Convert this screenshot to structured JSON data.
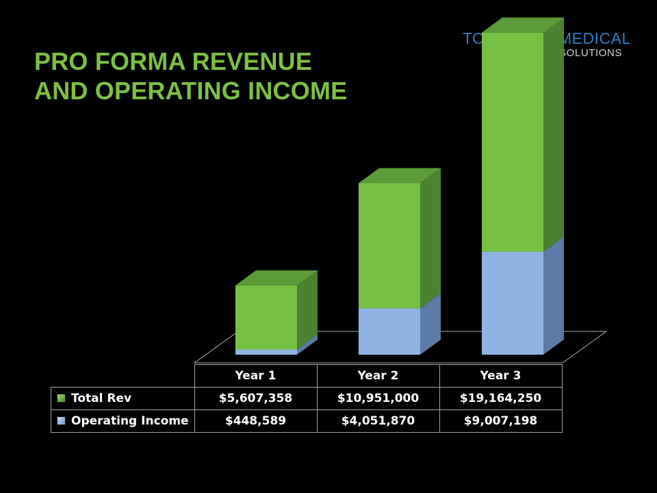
{
  "title": {
    "line1": "PRO FORMA REVENUE",
    "line2": "AND OPERATING INCOME"
  },
  "logo": {
    "word1": "TOUCH",
    "word2": "MEDICAL",
    "word3": "SOLUTIONS"
  },
  "colors": {
    "title": "#7dc043",
    "total_rev": "#76c043",
    "operating_income": "#8fb4e3",
    "logo_blue": "#2d7fc7"
  },
  "chart_data": {
    "type": "bar",
    "stacked": true,
    "three_d": true,
    "categories": [
      "Year 1",
      "Year 2",
      "Year 3"
    ],
    "series": [
      {
        "name": "Operating Income",
        "values": [
          448589,
          4051870,
          9007198
        ],
        "labels": [
          "$448,589",
          "$4,051,870",
          "$9,007,198"
        ],
        "color": "#8fb4e3"
      },
      {
        "name": "Total Rev",
        "values": [
          5607358,
          10951000,
          19164250
        ],
        "labels": [
          "$5,607,358",
          "$10,951,000",
          "$19,164,250"
        ],
        "color": "#76c043"
      }
    ],
    "legend": "data-table",
    "grid": false
  }
}
